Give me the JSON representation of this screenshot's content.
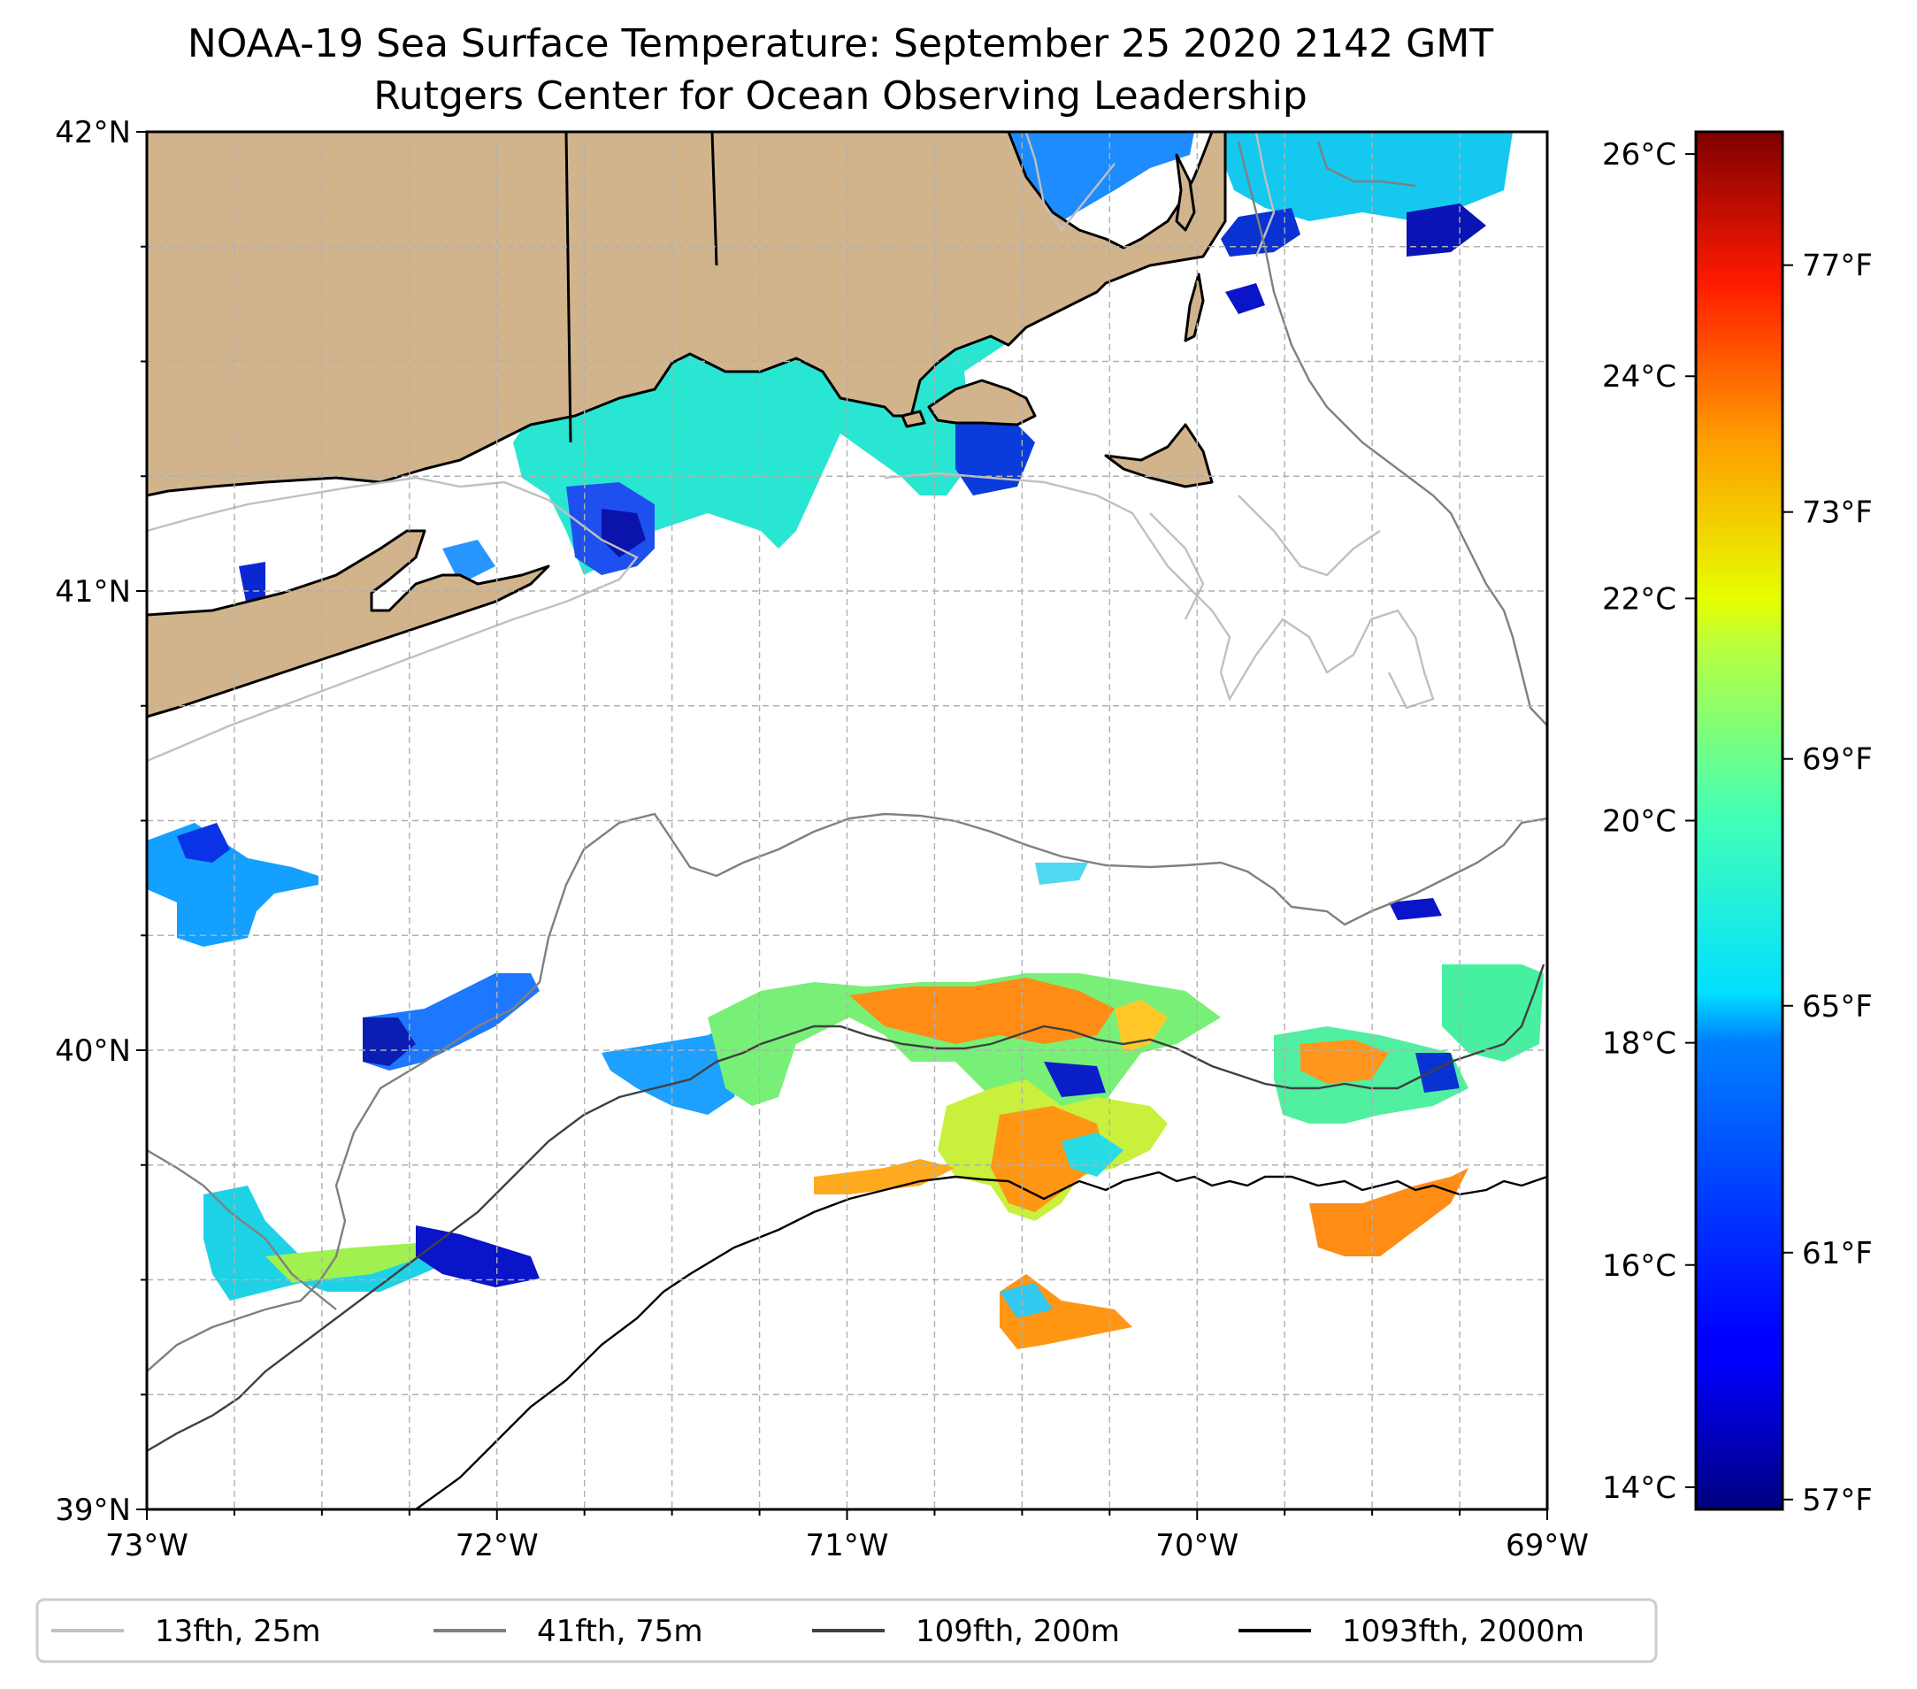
{
  "title": {
    "line1": "NOAA-19 Sea Surface Temperature: September 25 2020 2142 GMT",
    "line2": "Rutgers Center for Ocean Observing Leadership"
  },
  "map": {
    "lon_range": [
      -73,
      -69
    ],
    "lat_range": [
      39,
      42
    ],
    "lat_ticks": [
      {
        "value": 42,
        "label": "42°N"
      },
      {
        "value": 41,
        "label": "41°N"
      },
      {
        "value": 40,
        "label": "40°N"
      },
      {
        "value": 39,
        "label": "39°N"
      }
    ],
    "lon_ticks": [
      {
        "value": -73,
        "label": "73°W"
      },
      {
        "value": -72,
        "label": "72°W"
      },
      {
        "value": -71,
        "label": "71°W"
      },
      {
        "value": -70,
        "label": "70°W"
      },
      {
        "value": -69,
        "label": "69°W"
      }
    ],
    "grid": true,
    "land_color": "#d2b48c",
    "coastline_color": "#000000"
  },
  "colorbar": {
    "colormap": "jet",
    "range_c": [
      13.8,
      26.2
    ],
    "celsius_ticks": [
      {
        "value": 14,
        "label": "14°C"
      },
      {
        "value": 16,
        "label": "16°C"
      },
      {
        "value": 18,
        "label": "18°C"
      },
      {
        "value": 20,
        "label": "20°C"
      },
      {
        "value": 22,
        "label": "22°C"
      },
      {
        "value": 24,
        "label": "24°C"
      },
      {
        "value": 26,
        "label": "26°C"
      }
    ],
    "fahrenheit_ticks": [
      {
        "value": 57,
        "label": "57°F"
      },
      {
        "value": 61,
        "label": "61°F"
      },
      {
        "value": 65,
        "label": "65°F"
      },
      {
        "value": 69,
        "label": "69°F"
      },
      {
        "value": 73,
        "label": "73°F"
      },
      {
        "value": 77,
        "label": "77°F"
      }
    ]
  },
  "legend": {
    "placement": "bottom",
    "items": [
      {
        "label": "13fth, 25m",
        "color": "#c0c0c0"
      },
      {
        "label": "41fth, 75m",
        "color": "#808080"
      },
      {
        "label": "109fth, 200m",
        "color": "#404040"
      },
      {
        "label": "1093fth, 2000m",
        "color": "#000000"
      }
    ]
  }
}
